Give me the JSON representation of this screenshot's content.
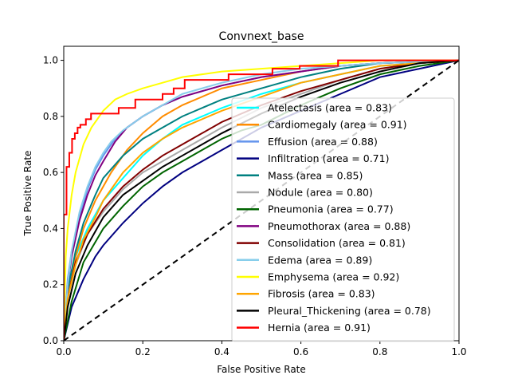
{
  "chart_data": {
    "type": "line",
    "title": "Convnext_base",
    "xlabel": "False Positive Rate",
    "ylabel": "True Positive Rate",
    "xlim": [
      0,
      1
    ],
    "ylim": [
      0,
      1.05
    ],
    "xticks": [
      "0.0",
      "0.2",
      "0.4",
      "0.6",
      "0.8",
      "1.0"
    ],
    "yticks": [
      "0.0",
      "0.2",
      "0.4",
      "0.6",
      "0.8",
      "1.0"
    ],
    "grid": false,
    "legend_position": "lower-right",
    "reference_line": {
      "style": "dashed",
      "color": "#000000",
      "from": [
        0,
        0
      ],
      "to": [
        1,
        1
      ]
    },
    "series": [
      {
        "name": "Atelectasis (area = 0.83)",
        "color": "#00FFFF",
        "x": [
          0,
          0.01,
          0.03,
          0.06,
          0.1,
          0.15,
          0.2,
          0.25,
          0.3,
          0.4,
          0.5,
          0.6,
          0.7,
          0.8,
          0.9,
          1.0
        ],
        "y": [
          0,
          0.2,
          0.3,
          0.4,
          0.5,
          0.58,
          0.66,
          0.72,
          0.77,
          0.83,
          0.88,
          0.92,
          0.95,
          0.98,
          0.99,
          1.0
        ]
      },
      {
        "name": "Cardiomegaly (area = 0.91)",
        "color": "#FF8C00",
        "x": [
          0,
          0.01,
          0.03,
          0.05,
          0.08,
          0.12,
          0.16,
          0.2,
          0.25,
          0.3,
          0.4,
          0.5,
          0.6,
          0.7,
          0.8,
          1.0
        ],
        "y": [
          0,
          0.15,
          0.3,
          0.4,
          0.5,
          0.6,
          0.68,
          0.74,
          0.8,
          0.84,
          0.9,
          0.93,
          0.96,
          0.98,
          0.99,
          1.0
        ]
      },
      {
        "name": "Effusion (area = 0.88)",
        "color": "#6495ED",
        "x": [
          0,
          0.01,
          0.02,
          0.04,
          0.06,
          0.08,
          0.1,
          0.13,
          0.16,
          0.2,
          0.25,
          0.3,
          0.4,
          0.5,
          0.6,
          0.7,
          0.8,
          1.0
        ],
        "y": [
          0,
          0.22,
          0.32,
          0.44,
          0.54,
          0.61,
          0.66,
          0.72,
          0.76,
          0.8,
          0.84,
          0.87,
          0.91,
          0.94,
          0.96,
          0.98,
          0.99,
          1.0
        ]
      },
      {
        "name": "Infiltration (area = 0.71)",
        "color": "#000080",
        "x": [
          0,
          0.02,
          0.05,
          0.08,
          0.1,
          0.15,
          0.2,
          0.25,
          0.3,
          0.35,
          0.4,
          0.45,
          0.5,
          0.6,
          0.7,
          0.8,
          0.9,
          1.0
        ],
        "y": [
          0,
          0.12,
          0.22,
          0.3,
          0.34,
          0.42,
          0.49,
          0.55,
          0.6,
          0.64,
          0.68,
          0.72,
          0.76,
          0.82,
          0.88,
          0.94,
          0.97,
          1.0
        ]
      },
      {
        "name": "Mass (area = 0.85)",
        "color": "#008080",
        "x": [
          0,
          0.01,
          0.03,
          0.05,
          0.08,
          0.1,
          0.15,
          0.2,
          0.25,
          0.3,
          0.4,
          0.5,
          0.6,
          0.7,
          0.8,
          1.0
        ],
        "y": [
          0,
          0.18,
          0.32,
          0.42,
          0.52,
          0.58,
          0.66,
          0.72,
          0.76,
          0.8,
          0.86,
          0.9,
          0.94,
          0.97,
          0.99,
          1.0
        ]
      },
      {
        "name": "Nodule (area = 0.80)",
        "color": "#A9A9A9",
        "x": [
          0,
          0.01,
          0.03,
          0.06,
          0.1,
          0.15,
          0.2,
          0.25,
          0.3,
          0.4,
          0.5,
          0.6,
          0.7,
          0.8,
          0.9,
          1.0
        ],
        "y": [
          0,
          0.15,
          0.27,
          0.38,
          0.46,
          0.54,
          0.6,
          0.64,
          0.68,
          0.76,
          0.83,
          0.88,
          0.93,
          0.97,
          0.99,
          1.0
        ]
      },
      {
        "name": "Pneumonia (area = 0.77)",
        "color": "#006400",
        "x": [
          0,
          0.02,
          0.05,
          0.1,
          0.15,
          0.2,
          0.25,
          0.3,
          0.35,
          0.4,
          0.45,
          0.5,
          0.6,
          0.7,
          0.8,
          0.9,
          1.0
        ],
        "y": [
          0,
          0.14,
          0.28,
          0.4,
          0.48,
          0.55,
          0.6,
          0.64,
          0.68,
          0.72,
          0.75,
          0.77,
          0.84,
          0.9,
          0.95,
          0.98,
          1.0
        ]
      },
      {
        "name": "Pneumothorax (area = 0.88)",
        "color": "#800080",
        "x": [
          0,
          0.01,
          0.02,
          0.04,
          0.06,
          0.08,
          0.1,
          0.13,
          0.16,
          0.2,
          0.25,
          0.3,
          0.4,
          0.5,
          0.6,
          0.7,
          0.8,
          1.0
        ],
        "y": [
          0,
          0.2,
          0.3,
          0.43,
          0.52,
          0.59,
          0.64,
          0.71,
          0.76,
          0.8,
          0.84,
          0.87,
          0.91,
          0.94,
          0.96,
          0.98,
          0.99,
          1.0
        ]
      },
      {
        "name": "Consolidation (area = 0.81)",
        "color": "#800000",
        "x": [
          0,
          0.01,
          0.03,
          0.06,
          0.1,
          0.15,
          0.2,
          0.25,
          0.3,
          0.4,
          0.5,
          0.6,
          0.7,
          0.8,
          0.9,
          1.0
        ],
        "y": [
          0,
          0.15,
          0.28,
          0.38,
          0.47,
          0.55,
          0.61,
          0.66,
          0.7,
          0.78,
          0.84,
          0.89,
          0.93,
          0.97,
          0.99,
          1.0
        ]
      },
      {
        "name": "Edema (area = 0.89)",
        "color": "#87CEEB",
        "x": [
          0,
          0.01,
          0.02,
          0.04,
          0.06,
          0.08,
          0.1,
          0.12,
          0.15,
          0.2,
          0.25,
          0.3,
          0.4,
          0.5,
          0.6,
          0.7,
          0.8,
          1.0
        ],
        "y": [
          0,
          0.2,
          0.32,
          0.46,
          0.55,
          0.62,
          0.67,
          0.71,
          0.75,
          0.8,
          0.84,
          0.88,
          0.92,
          0.95,
          0.97,
          0.98,
          0.99,
          1.0
        ]
      },
      {
        "name": "Emphysema (area = 0.92)",
        "color": "#FFFF00",
        "x": [
          0,
          0.005,
          0.01,
          0.02,
          0.03,
          0.05,
          0.07,
          0.1,
          0.13,
          0.16,
          0.2,
          0.25,
          0.3,
          0.4,
          0.5,
          0.6,
          0.7,
          0.8,
          1.0
        ],
        "y": [
          0,
          0.3,
          0.4,
          0.52,
          0.6,
          0.7,
          0.76,
          0.82,
          0.86,
          0.88,
          0.9,
          0.92,
          0.94,
          0.96,
          0.97,
          0.98,
          0.99,
          1.0,
          1.0
        ]
      },
      {
        "name": "Fibrosis (area = 0.83)",
        "color": "#FFA500",
        "x": [
          0,
          0.01,
          0.03,
          0.05,
          0.08,
          0.1,
          0.15,
          0.2,
          0.25,
          0.3,
          0.4,
          0.5,
          0.6,
          0.7,
          0.8,
          0.9,
          1.0
        ],
        "y": [
          0,
          0.15,
          0.27,
          0.36,
          0.44,
          0.5,
          0.6,
          0.67,
          0.72,
          0.76,
          0.82,
          0.87,
          0.92,
          0.95,
          0.98,
          0.99,
          1.0
        ]
      },
      {
        "name": "Pleural_Thickening (area = 0.78)",
        "color": "#000000",
        "x": [
          0,
          0.01,
          0.03,
          0.06,
          0.1,
          0.15,
          0.2,
          0.25,
          0.3,
          0.35,
          0.4,
          0.5,
          0.6,
          0.7,
          0.8,
          0.9,
          1.0
        ],
        "y": [
          0,
          0.12,
          0.24,
          0.34,
          0.44,
          0.52,
          0.57,
          0.62,
          0.66,
          0.7,
          0.74,
          0.81,
          0.87,
          0.92,
          0.96,
          0.99,
          1.0
        ]
      },
      {
        "name": "Hernia (area = 0.91)",
        "color": "#FF0000",
        "x": [
          0,
          0,
          0.007,
          0.007,
          0.014,
          0.014,
          0.021,
          0.021,
          0.028,
          0.028,
          0.035,
          0.035,
          0.042,
          0.042,
          0.056,
          0.056,
          0.069,
          0.069,
          0.139,
          0.139,
          0.181,
          0.181,
          0.25,
          0.25,
          0.278,
          0.278,
          0.306,
          0.306,
          0.417,
          0.417,
          0.528,
          0.528,
          0.597,
          0.597,
          0.694,
          0.694,
          1.0
        ],
        "y": [
          0,
          0.45,
          0.45,
          0.62,
          0.62,
          0.67,
          0.67,
          0.72,
          0.72,
          0.74,
          0.74,
          0.76,
          0.76,
          0.77,
          0.77,
          0.79,
          0.79,
          0.81,
          0.81,
          0.83,
          0.83,
          0.86,
          0.86,
          0.88,
          0.88,
          0.9,
          0.9,
          0.93,
          0.93,
          0.95,
          0.95,
          0.97,
          0.97,
          0.98,
          0.98,
          1.0,
          1.0
        ]
      }
    ]
  }
}
